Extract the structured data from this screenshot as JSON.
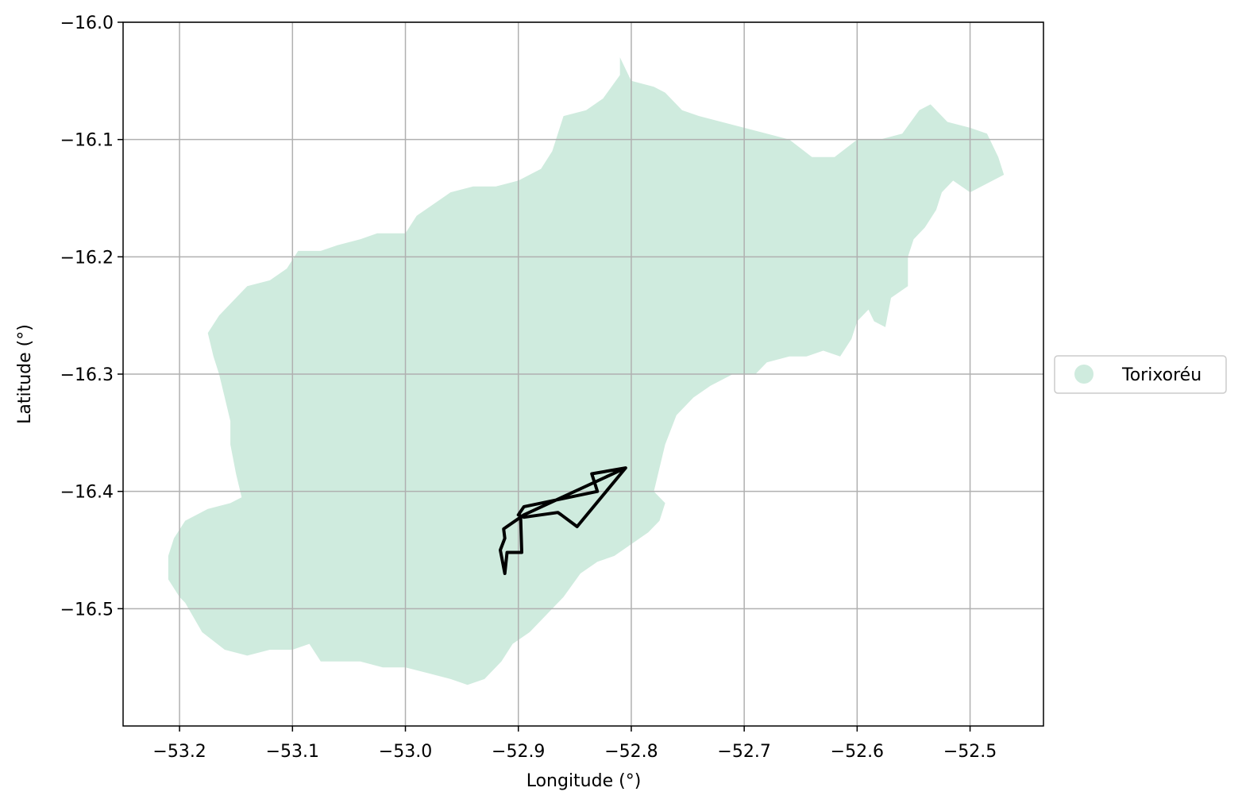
{
  "chart_data": {
    "type": "map",
    "xlabel": "Longitude (°)",
    "ylabel": "Latitude (°)",
    "xlim": [
      -53.25,
      -52.435
    ],
    "ylim": [
      -16.6,
      -16.0
    ],
    "xticks": [
      -53.2,
      -53.1,
      -53.0,
      -52.9,
      -52.8,
      -52.7,
      -52.6,
      -52.5
    ],
    "xtick_labels": [
      "−53.2",
      "−53.1",
      "−53.0",
      "−52.9",
      "−52.8",
      "−52.7",
      "−52.6",
      "−52.5"
    ],
    "yticks": [
      -16.0,
      -16.1,
      -16.2,
      -16.3,
      -16.4,
      -16.5
    ],
    "ytick_labels": [
      "−16.0",
      "−16.1",
      "−16.2",
      "−16.3",
      "−16.4",
      "−16.5"
    ],
    "grid": true,
    "legend": {
      "placement": "right-center",
      "entries": [
        {
          "label": "Torixoréu",
          "color": "#cfebde"
        }
      ]
    },
    "region": {
      "name": "Torixoréu",
      "color": "#cfebde",
      "outline": [
        [
          -52.81,
          -16.03
        ],
        [
          -52.8,
          -16.05
        ],
        [
          -52.78,
          -16.055
        ],
        [
          -52.77,
          -16.06
        ],
        [
          -52.755,
          -16.075
        ],
        [
          -52.74,
          -16.08
        ],
        [
          -52.72,
          -16.085
        ],
        [
          -52.7,
          -16.09
        ],
        [
          -52.68,
          -16.095
        ],
        [
          -52.66,
          -16.1
        ],
        [
          -52.64,
          -16.115
        ],
        [
          -52.62,
          -16.115
        ],
        [
          -52.6,
          -16.1
        ],
        [
          -52.58,
          -16.1
        ],
        [
          -52.56,
          -16.095
        ],
        [
          -52.545,
          -16.075
        ],
        [
          -52.535,
          -16.07
        ],
        [
          -52.52,
          -16.085
        ],
        [
          -52.5,
          -16.09
        ],
        [
          -52.485,
          -16.095
        ],
        [
          -52.475,
          -16.115
        ],
        [
          -52.47,
          -16.13
        ],
        [
          -52.49,
          -16.14
        ],
        [
          -52.5,
          -16.145
        ],
        [
          -52.515,
          -16.135
        ],
        [
          -52.525,
          -16.145
        ],
        [
          -52.53,
          -16.16
        ],
        [
          -52.54,
          -16.175
        ],
        [
          -52.55,
          -16.185
        ],
        [
          -52.555,
          -16.2
        ],
        [
          -52.555,
          -16.225
        ],
        [
          -52.57,
          -16.235
        ],
        [
          -52.575,
          -16.26
        ],
        [
          -52.585,
          -16.255
        ],
        [
          -52.59,
          -16.245
        ],
        [
          -52.6,
          -16.255
        ],
        [
          -52.605,
          -16.27
        ],
        [
          -52.615,
          -16.285
        ],
        [
          -52.63,
          -16.28
        ],
        [
          -52.645,
          -16.285
        ],
        [
          -52.66,
          -16.285
        ],
        [
          -52.68,
          -16.29
        ],
        [
          -52.69,
          -16.3
        ],
        [
          -52.71,
          -16.3
        ],
        [
          -52.73,
          -16.31
        ],
        [
          -52.745,
          -16.32
        ],
        [
          -52.76,
          -16.335
        ],
        [
          -52.77,
          -16.36
        ],
        [
          -52.775,
          -16.38
        ],
        [
          -52.78,
          -16.4
        ],
        [
          -52.77,
          -16.41
        ],
        [
          -52.775,
          -16.425
        ],
        [
          -52.785,
          -16.435
        ],
        [
          -52.8,
          -16.445
        ],
        [
          -52.815,
          -16.455
        ],
        [
          -52.83,
          -16.46
        ],
        [
          -52.845,
          -16.47
        ],
        [
          -52.86,
          -16.49
        ],
        [
          -52.875,
          -16.505
        ],
        [
          -52.89,
          -16.52
        ],
        [
          -52.905,
          -16.53
        ],
        [
          -52.915,
          -16.545
        ],
        [
          -52.93,
          -16.56
        ],
        [
          -52.945,
          -16.565
        ],
        [
          -52.96,
          -16.56
        ],
        [
          -52.98,
          -16.555
        ],
        [
          -53.0,
          -16.55
        ],
        [
          -53.02,
          -16.55
        ],
        [
          -53.04,
          -16.545
        ],
        [
          -53.06,
          -16.545
        ],
        [
          -53.075,
          -16.545
        ],
        [
          -53.085,
          -16.53
        ],
        [
          -53.1,
          -16.535
        ],
        [
          -53.12,
          -16.535
        ],
        [
          -53.14,
          -16.54
        ],
        [
          -53.16,
          -16.535
        ],
        [
          -53.18,
          -16.52
        ],
        [
          -53.195,
          -16.495
        ],
        [
          -53.2,
          -16.49
        ],
        [
          -53.21,
          -16.475
        ],
        [
          -53.21,
          -16.455
        ],
        [
          -53.205,
          -16.44
        ],
        [
          -53.195,
          -16.425
        ],
        [
          -53.175,
          -16.415
        ],
        [
          -53.155,
          -16.41
        ],
        [
          -53.145,
          -16.405
        ],
        [
          -53.15,
          -16.385
        ],
        [
          -53.155,
          -16.36
        ],
        [
          -53.155,
          -16.34
        ],
        [
          -53.16,
          -16.32
        ],
        [
          -53.165,
          -16.3
        ],
        [
          -53.17,
          -16.285
        ],
        [
          -53.175,
          -16.265
        ],
        [
          -53.165,
          -16.25
        ],
        [
          -53.15,
          -16.235
        ],
        [
          -53.14,
          -16.225
        ],
        [
          -53.12,
          -16.22
        ],
        [
          -53.105,
          -16.21
        ],
        [
          -53.095,
          -16.195
        ],
        [
          -53.075,
          -16.195
        ],
        [
          -53.06,
          -16.19
        ],
        [
          -53.04,
          -16.185
        ],
        [
          -53.025,
          -16.18
        ],
        [
          -53.0,
          -16.18
        ],
        [
          -52.99,
          -16.165
        ],
        [
          -52.975,
          -16.155
        ],
        [
          -52.96,
          -16.145
        ],
        [
          -52.94,
          -16.14
        ],
        [
          -52.92,
          -16.14
        ],
        [
          -52.9,
          -16.135
        ],
        [
          -52.88,
          -16.125
        ],
        [
          -52.87,
          -16.11
        ],
        [
          -52.865,
          -16.095
        ],
        [
          -52.86,
          -16.08
        ],
        [
          -52.84,
          -16.075
        ],
        [
          -52.825,
          -16.065
        ],
        [
          -52.81,
          -16.045
        ]
      ]
    },
    "route": {
      "color": "#000000",
      "points": [
        [
          -52.805,
          -16.38
        ],
        [
          -52.835,
          -16.385
        ],
        [
          -52.83,
          -16.4
        ],
        [
          -52.895,
          -16.413
        ],
        [
          -52.9,
          -16.42
        ],
        [
          -52.895,
          -16.422
        ],
        [
          -52.865,
          -16.418
        ],
        [
          -52.862,
          -16.42
        ],
        [
          -52.848,
          -16.43
        ],
        [
          -52.805,
          -16.38
        ],
        [
          -52.895,
          -16.42
        ],
        [
          -52.913,
          -16.432
        ],
        [
          -52.912,
          -16.44
        ],
        [
          -52.916,
          -16.45
        ],
        [
          -52.912,
          -16.47
        ],
        [
          -52.91,
          -16.452
        ],
        [
          -52.897,
          -16.452
        ],
        [
          -52.898,
          -16.422
        ]
      ]
    }
  }
}
